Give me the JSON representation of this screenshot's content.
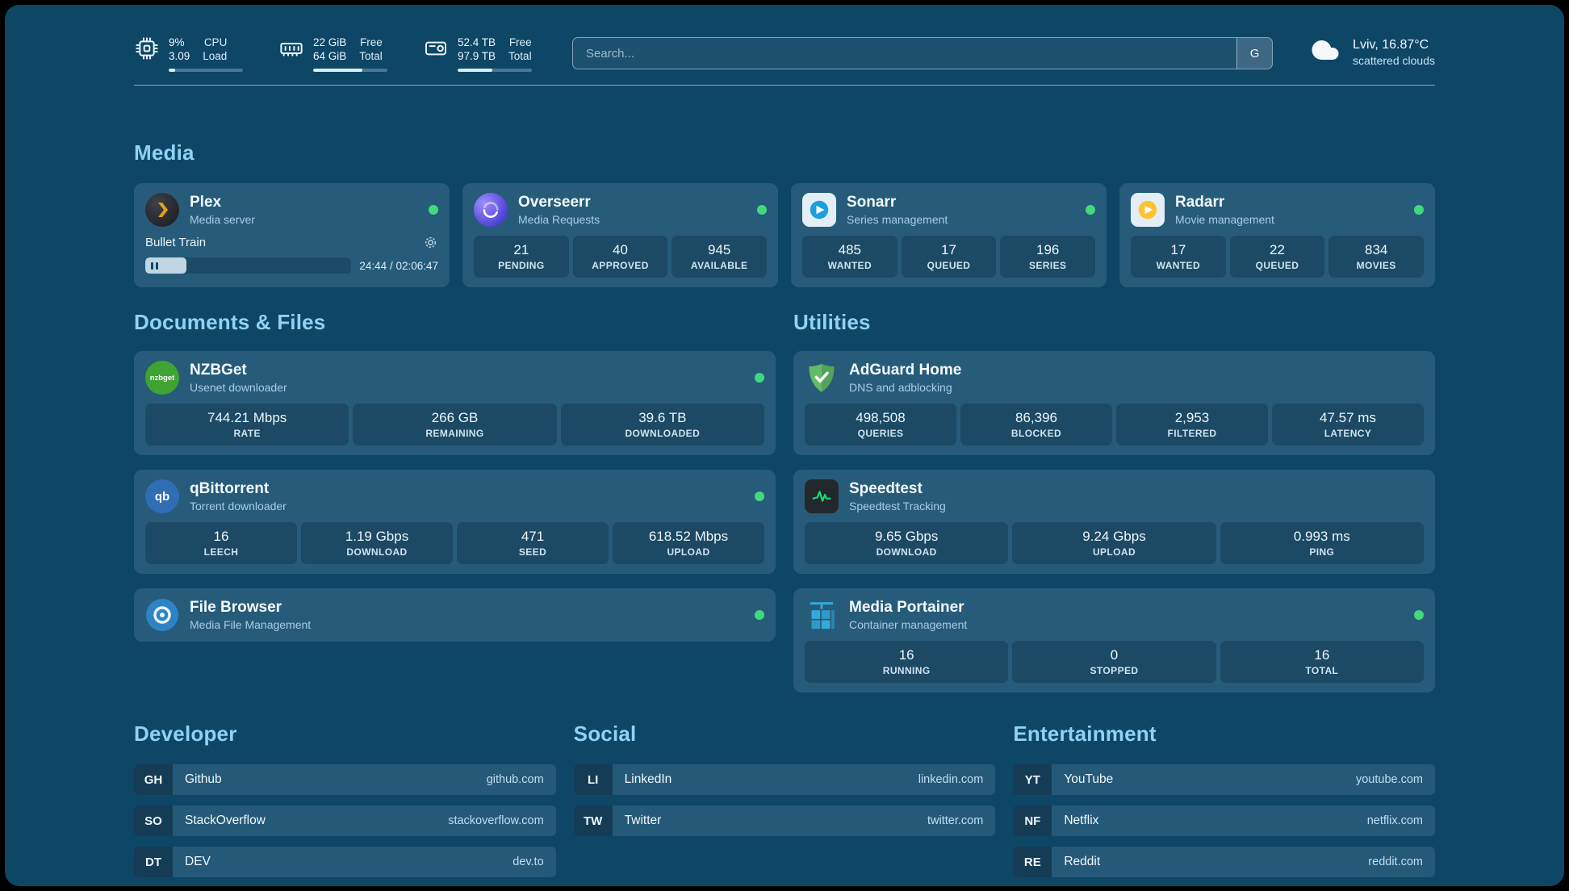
{
  "colors": {
    "background": "#0e4666",
    "heading_accent": "#8fd2f5",
    "status_online": "#42d97d",
    "plex_brand": "#e8a117",
    "adguard_brand": "#66bb6a",
    "speedtest_brand": "#19d96f",
    "portainer_brand": "#35a8dc"
  },
  "header": {
    "cpu": {
      "value1": "9%",
      "value2": "3.09",
      "label1": "CPU",
      "label2": "Load",
      "bar": 9
    },
    "ram": {
      "value1": "22 GiB",
      "value2": "64 GiB",
      "label1": "Free",
      "label2": "Total",
      "bar": 66
    },
    "disk": {
      "value1": "52.4 TB",
      "value2": "97.9 TB",
      "label1": "Free",
      "label2": "Total",
      "bar": 47
    },
    "search": {
      "placeholder": "Search...",
      "button_label": "G"
    },
    "weather": {
      "location": "Lviv, 16.87°C",
      "condition": "scattered clouds"
    }
  },
  "sections": {
    "media": "Media",
    "documents": "Documents & Files",
    "utilities": "Utilities",
    "developer": "Developer",
    "social": "Social",
    "entertainment": "Entertainment"
  },
  "apps": {
    "plex": {
      "title": "Plex",
      "subtitle": "Media server",
      "now_playing": "Bullet Train",
      "time": "24:44 / 02:06:47",
      "progress": 20
    },
    "overseerr": {
      "title": "Overseerr",
      "subtitle": "Media Requests",
      "stats": [
        {
          "value": "21",
          "label": "PENDING"
        },
        {
          "value": "40",
          "label": "APPROVED"
        },
        {
          "value": "945",
          "label": "AVAILABLE"
        }
      ]
    },
    "sonarr": {
      "title": "Sonarr",
      "subtitle": "Series management",
      "stats": [
        {
          "value": "485",
          "label": "WANTED"
        },
        {
          "value": "17",
          "label": "QUEUED"
        },
        {
          "value": "196",
          "label": "SERIES"
        }
      ]
    },
    "radarr": {
      "title": "Radarr",
      "subtitle": "Movie management",
      "stats": [
        {
          "value": "17",
          "label": "WANTED"
        },
        {
          "value": "22",
          "label": "QUEUED"
        },
        {
          "value": "834",
          "label": "MOVIES"
        }
      ]
    },
    "nzbget": {
      "title": "NZBGet",
      "subtitle": "Usenet downloader",
      "icon_text": "nzbget",
      "stats": [
        {
          "value": "744.21 Mbps",
          "label": "RATE"
        },
        {
          "value": "266 GB",
          "label": "REMAINING"
        },
        {
          "value": "39.6 TB",
          "label": "DOWNLOADED"
        }
      ]
    },
    "qbittorrent": {
      "title": "qBittorrent",
      "subtitle": "Torrent downloader",
      "icon_text": "qb",
      "stats": [
        {
          "value": "16",
          "label": "LEECH"
        },
        {
          "value": "1.19 Gbps",
          "label": "DOWNLOAD"
        },
        {
          "value": "471",
          "label": "SEED"
        },
        {
          "value": "618.52 Mbps",
          "label": "UPLOAD"
        }
      ]
    },
    "filebrowser": {
      "title": "File Browser",
      "subtitle": "Media File Management"
    },
    "adguard": {
      "title": "AdGuard Home",
      "subtitle": "DNS and adblocking",
      "stats": [
        {
          "value": "498,508",
          "label": "QUERIES"
        },
        {
          "value": "86,396",
          "label": "BLOCKED"
        },
        {
          "value": "2,953",
          "label": "FILTERED"
        },
        {
          "value": "47.57 ms",
          "label": "LATENCY"
        }
      ]
    },
    "speedtest": {
      "title": "Speedtest",
      "subtitle": "Speedtest Tracking",
      "stats": [
        {
          "value": "9.65 Gbps",
          "label": "DOWNLOAD"
        },
        {
          "value": "9.24 Gbps",
          "label": "UPLOAD"
        },
        {
          "value": "0.993 ms",
          "label": "PING"
        }
      ]
    },
    "portainer": {
      "title": "Media Portainer",
      "subtitle": "Container management",
      "stats": [
        {
          "value": "16",
          "label": "RUNNING"
        },
        {
          "value": "0",
          "label": "STOPPED"
        },
        {
          "value": "16",
          "label": "TOTAL"
        }
      ]
    }
  },
  "bookmarks": {
    "developer": [
      {
        "abbr": "GH",
        "name": "Github",
        "url": "github.com"
      },
      {
        "abbr": "SO",
        "name": "StackOverflow",
        "url": "stackoverflow.com"
      },
      {
        "abbr": "DT",
        "name": "DEV",
        "url": "dev.to"
      }
    ],
    "social": [
      {
        "abbr": "LI",
        "name": "LinkedIn",
        "url": "linkedin.com"
      },
      {
        "abbr": "TW",
        "name": "Twitter",
        "url": "twitter.com"
      }
    ],
    "entertainment": [
      {
        "abbr": "YT",
        "name": "YouTube",
        "url": "youtube.com"
      },
      {
        "abbr": "NF",
        "name": "Netflix",
        "url": "netflix.com"
      },
      {
        "abbr": "RE",
        "name": "Reddit",
        "url": "reddit.com"
      }
    ]
  }
}
